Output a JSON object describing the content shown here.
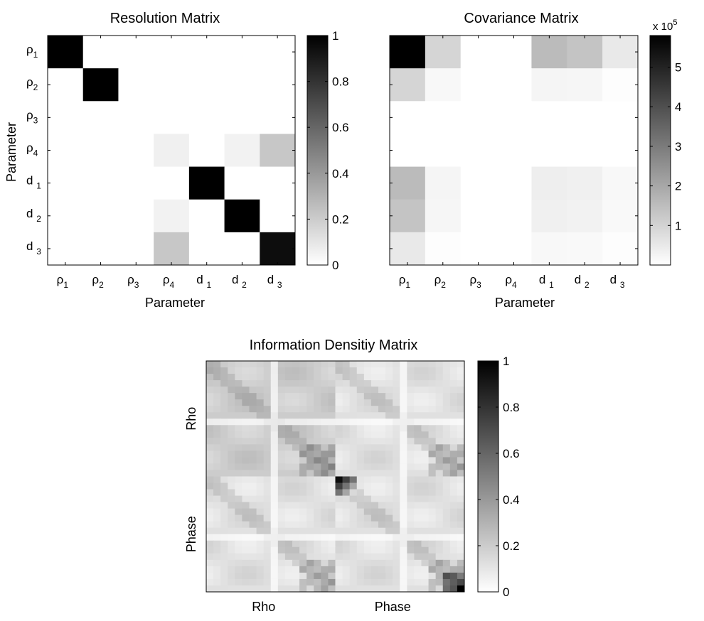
{
  "chart_data": [
    {
      "type": "heatmap",
      "title": "Resolution Matrix",
      "xlabel": "Parameter",
      "ylabel": "Parameter",
      "categories": [
        {
          "base": "ρ",
          "sub": "1"
        },
        {
          "base": "ρ",
          "sub": "2"
        },
        {
          "base": "ρ",
          "sub": "3"
        },
        {
          "base": "ρ",
          "sub": "4"
        },
        {
          "base": "d",
          "sub": "1"
        },
        {
          "base": "d",
          "sub": "2"
        },
        {
          "base": "d",
          "sub": "3"
        }
      ],
      "colormap": "gray-reversed",
      "clim": [
        0,
        1
      ],
      "colorbar_ticks": [
        "0",
        "0.2",
        "0.4",
        "0.6",
        "0.8",
        "1"
      ],
      "values": [
        [
          1,
          0,
          0,
          0,
          0,
          0,
          0
        ],
        [
          0,
          1,
          0,
          0,
          0,
          0,
          0
        ],
        [
          0,
          0,
          0,
          0,
          0,
          0,
          0
        ],
        [
          0,
          0,
          0,
          0.06,
          0,
          0.05,
          0.22
        ],
        [
          0,
          0,
          0,
          0,
          1,
          0,
          0
        ],
        [
          0,
          0,
          0,
          0.05,
          0,
          1,
          0
        ],
        [
          0,
          0,
          0,
          0.22,
          0,
          0,
          0.95
        ]
      ]
    },
    {
      "type": "heatmap",
      "title": "Covariance Matrix",
      "xlabel": "Parameter",
      "ylabel": "",
      "categories": [
        {
          "base": "ρ",
          "sub": "1"
        },
        {
          "base": "ρ",
          "sub": "2"
        },
        {
          "base": "ρ",
          "sub": "3"
        },
        {
          "base": "ρ",
          "sub": "4"
        },
        {
          "base": "d",
          "sub": "1"
        },
        {
          "base": "d",
          "sub": "2"
        },
        {
          "base": "d",
          "sub": "3"
        }
      ],
      "colormap": "gray-reversed",
      "clim": [
        0,
        580000
      ],
      "colorbar_ticks": [
        "1",
        "2",
        "3",
        "4",
        "5"
      ],
      "colorbar_multiplier": {
        "base": "x 10",
        "exp": "5"
      },
      "values": [
        [
          580000,
          95000,
          0,
          0,
          155000,
          135000,
          50000
        ],
        [
          95000,
          15000,
          0,
          0,
          22000,
          20000,
          5000
        ],
        [
          0,
          0,
          0,
          0,
          0,
          0,
          0
        ],
        [
          0,
          0,
          0,
          0,
          0,
          0,
          0
        ],
        [
          155000,
          22000,
          0,
          0,
          38000,
          33000,
          15000
        ],
        [
          135000,
          20000,
          0,
          0,
          33000,
          30000,
          13000
        ],
        [
          50000,
          5000,
          0,
          0,
          15000,
          13000,
          5000
        ]
      ]
    },
    {
      "type": "heatmap",
      "title": "Information Densitiy Matrix",
      "xlabel_blocks": [
        "Rho",
        "Phase"
      ],
      "ylabel_blocks": [
        "Rho",
        "Phase"
      ],
      "colormap": "gray-reversed",
      "clim": [
        0,
        1
      ],
      "colorbar_ticks": [
        "0",
        "0.2",
        "0.4",
        "0.6",
        "0.8",
        "1"
      ],
      "grid_size": 36,
      "values_note_omitted": ""
    }
  ]
}
